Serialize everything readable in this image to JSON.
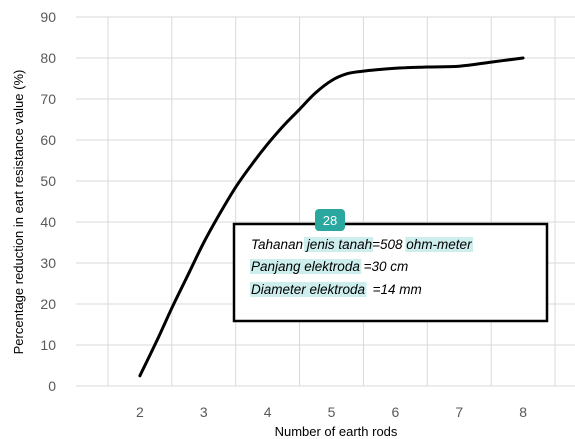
{
  "chart_data": {
    "type": "line",
    "xlabel": "Number of earth rods",
    "ylabel": "Percentage reduction in eart resistance value (%)",
    "xlim": [
      2,
      8
    ],
    "ylim": [
      0,
      90
    ],
    "x_ticks": [
      "2",
      "3",
      "4",
      "5",
      "6",
      "7",
      "8"
    ],
    "y_ticks": [
      "0",
      "10",
      "20",
      "30",
      "40",
      "50",
      "60",
      "70",
      "80",
      "90"
    ],
    "grid": true,
    "line_color": "#000000",
    "series": [
      {
        "x": [
          2,
          2.25,
          2.5,
          2.75,
          3,
          3.25,
          3.5,
          3.75,
          4,
          4.25,
          4.5,
          4.75,
          5,
          5.25,
          5.5,
          5.75,
          6,
          6.5,
          7,
          7.5,
          8
        ],
        "values": [
          2.5,
          10.5,
          19,
          27,
          35,
          42,
          48.5,
          54,
          59,
          63.5,
          67.5,
          71.5,
          74.5,
          76.2,
          76.8,
          77.2,
          77.5,
          77.8,
          78,
          79,
          80
        ]
      }
    ]
  },
  "annotation": {
    "badge": "28",
    "badge_color": "#2aa8a0",
    "highlight_color": "#cdeeed",
    "lines": [
      [
        {
          "text": "Tahanan ",
          "hl": false
        },
        {
          "text": "jenis tanah",
          "hl": true
        },
        {
          "text": "=508 ",
          "hl": false
        },
        {
          "text": "ohm-meter",
          "hl": true
        }
      ],
      [
        {
          "text": "Panjang elektroda",
          "hl": true
        },
        {
          "text": " =30 cm",
          "hl": false
        }
      ],
      [
        {
          "text": "Diameter elektroda",
          "hl": true
        },
        {
          "text": "  =14 mm",
          "hl": false
        }
      ]
    ]
  }
}
